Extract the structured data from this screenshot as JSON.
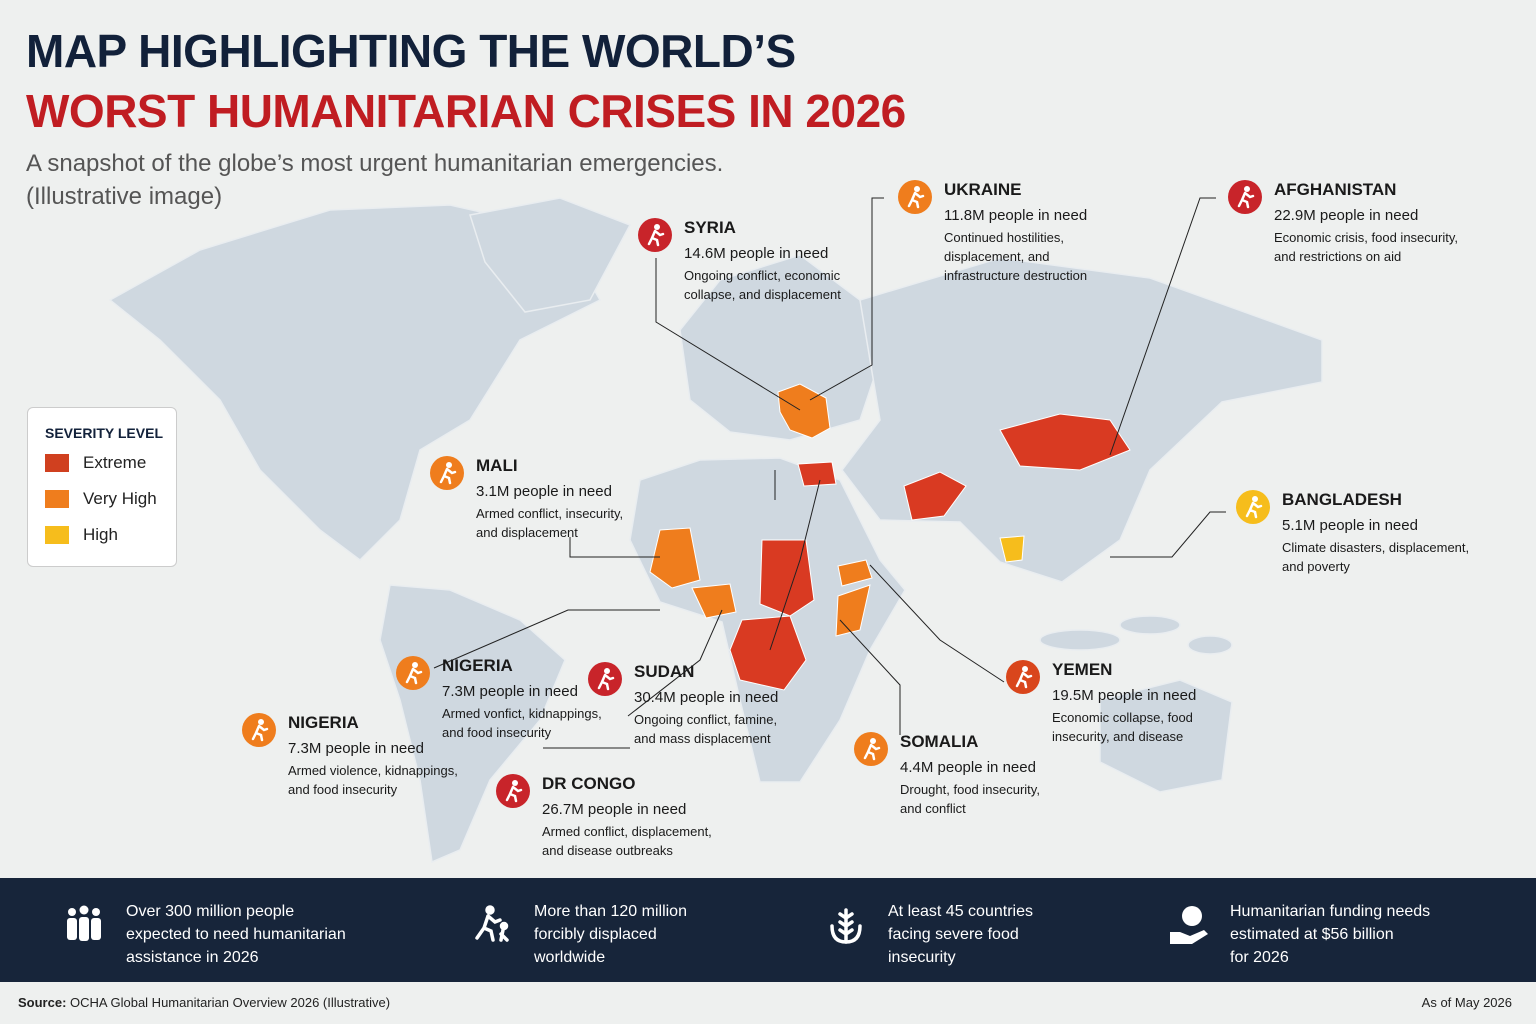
{
  "header": {
    "title_line1": "MAP HIGHLIGHTING THE WORLD’S",
    "title_line2": "WORST HUMANITARIAN CRISES IN 2026",
    "subtitle_line1": "A snapshot of the globe’s most urgent humanitarian emergencies.",
    "subtitle_line2": "(Illustrative image)"
  },
  "legend": {
    "title": "SEVERITY LEVEL",
    "items": [
      {
        "label": "Extreme",
        "color": "#d0401f"
      },
      {
        "label": "Very High",
        "color": "#ef7d1d"
      },
      {
        "label": "High",
        "color": "#f6bd1c"
      }
    ]
  },
  "callouts": [
    {
      "title": "SYRIA",
      "need": "14.6M people in need",
      "desc": [
        "Ongoing conflict, economic",
        "collapse, and displacement"
      ],
      "color": "#c8242a"
    },
    {
      "title": "UKRAINE",
      "need": "11.8M people in need",
      "desc": [
        "Continued hostilities,",
        "displacement, and",
        "infrastructure destruction"
      ],
      "color": "#ef7d1d"
    },
    {
      "title": "AFGHANISTAN",
      "need": "22.9M people in need",
      "desc": [
        "Economic crisis, food insecurity,",
        "and restrictions on aid"
      ],
      "color": "#c8242a"
    },
    {
      "title": "MALI",
      "need": "3.1M people in need",
      "desc": [
        "Armed conflict, insecurity,",
        "and displacement"
      ],
      "color": "#ef7d1d"
    },
    {
      "title": "BANGLADESH",
      "need": "5.1M people in need",
      "desc": [
        "Climate disasters, displacement,",
        "and poverty"
      ],
      "color": "#f6bd1c"
    },
    {
      "title": "NIGERIA",
      "need": "7.3M people in need",
      "desc": [
        "Armed vonfict, kidnappings,",
        "and food insecurity"
      ],
      "color": "#ef7d1d"
    },
    {
      "title": "SUDAN",
      "need": "30.4M people in need",
      "desc": [
        "Ongoing conflict, famine,",
        "and mass displacement"
      ],
      "color": "#c8242a"
    },
    {
      "title": "YEMEN",
      "need": "19.5M people in need",
      "desc": [
        "Economic collapse, food",
        "insecurity, and disease"
      ],
      "color": "#d9461c"
    },
    {
      "title": "NIGERIA",
      "need": "7.3M people in need",
      "desc": [
        "Armed violence, kidnappings,",
        "and food insecurity"
      ],
      "color": "#ef7d1d"
    },
    {
      "title": "SOMALIA",
      "need": "4.4M people in need",
      "desc": [
        "Drought, food insecurity,",
        "and conflict"
      ],
      "color": "#ef7d1d"
    },
    {
      "title": "DR CONGO",
      "need": "26.7M people in need",
      "desc": [
        "Armed conflict, displacement,",
        "and disease outbreaks"
      ],
      "color": "#c8242a"
    }
  ],
  "stats": [
    [
      "Over 300 million people",
      "expected to need humanitarian",
      "assistance in 2026"
    ],
    [
      "More than 120 million",
      "forcibly displaced",
      "worldwide"
    ],
    [
      "At least 45 countries",
      "facing severe food",
      "insecurity"
    ],
    [
      "Humanitarian funding needs",
      "estimated at $56 billion",
      "for 2026"
    ]
  ],
  "footer": {
    "source_label": "Source:",
    "source_text": "OCHA Global Humanitarian Overview 2026 (Illustrative)",
    "date": "As of May 2026"
  }
}
